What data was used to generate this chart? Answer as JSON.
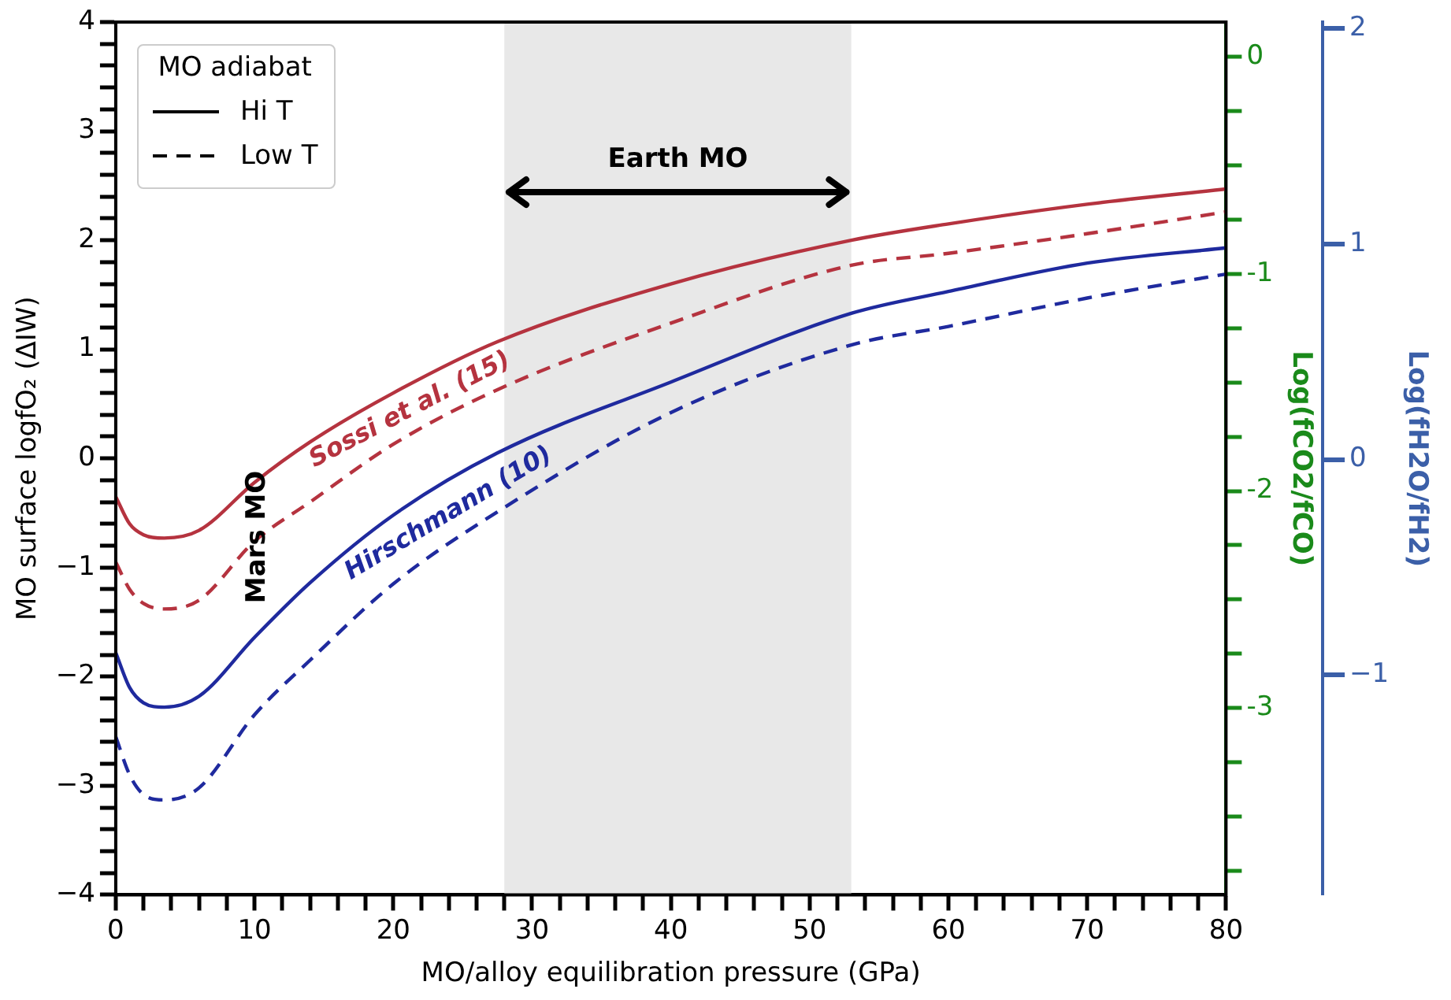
{
  "chart_data": {
    "type": "line",
    "xlabel": "MO/alloy equilibration pressure (GPa)",
    "ylabel": "MO surface logfO₂ (ΔIW)",
    "y2label": "Log(fCO2/fCO)",
    "y3label": "Log(fH2O/fH2)",
    "legend": "top left",
    "legend_title": "MO adiabat",
    "xlim": [
      0,
      80
    ],
    "xticks": [
      0,
      {
        "value": 2,
        "label": null
      },
      {
        "value": 4,
        "label": null
      },
      {
        "value": 6,
        "label": null
      },
      {
        "value": 8,
        "label": null
      },
      10,
      {
        "value": 12,
        "label": null
      },
      {
        "value": 14,
        "label": null
      },
      {
        "value": 16,
        "label": null
      },
      {
        "value": 18,
        "label": null
      },
      20,
      {
        "value": 22,
        "label": null
      },
      {
        "value": 24,
        "label": null
      },
      {
        "value": 26,
        "label": null
      },
      {
        "value": 28,
        "label": null
      },
      30,
      {
        "value": 32,
        "label": null
      },
      {
        "value": 34,
        "label": null
      },
      {
        "value": 36,
        "label": null
      },
      {
        "value": 38,
        "label": null
      },
      40,
      {
        "value": 42,
        "label": null
      },
      {
        "value": 44,
        "label": null
      },
      {
        "value": 46,
        "label": null
      },
      {
        "value": 48,
        "label": null
      },
      50,
      {
        "value": 52,
        "label": null
      },
      {
        "value": 54,
        "label": null
      },
      {
        "value": 56,
        "label": null
      },
      {
        "value": 58,
        "label": null
      },
      60,
      {
        "value": 62,
        "label": null
      },
      {
        "value": 64,
        "label": null
      },
      {
        "value": 66,
        "label": null
      },
      {
        "value": 68,
        "label": null
      },
      70,
      {
        "value": 72,
        "label": null
      },
      {
        "value": 74,
        "label": null
      },
      {
        "value": 76,
        "label": null
      },
      {
        "value": 78,
        "label": null
      },
      80
    ],
    "ylim": [
      -4,
      4
    ],
    "yticks": [
      {
        "value": -4,
        "label": "−4"
      },
      {
        "value": -3.8,
        "label": null
      },
      {
        "value": -3.6,
        "label": null
      },
      {
        "value": -3.4,
        "label": null
      },
      {
        "value": -3.2,
        "label": null
      },
      {
        "value": -3,
        "label": "−3"
      },
      {
        "value": -2.8,
        "label": null
      },
      {
        "value": -2.6,
        "label": null
      },
      {
        "value": -2.4,
        "label": null
      },
      {
        "value": -2.2,
        "label": null
      },
      {
        "value": -2,
        "label": "−2"
      },
      {
        "value": -1.8,
        "label": null
      },
      {
        "value": -1.6,
        "label": null
      },
      {
        "value": -1.4,
        "label": null
      },
      {
        "value": -1.2,
        "label": null
      },
      {
        "value": -1,
        "label": "−1"
      },
      {
        "value": -0.8,
        "label": null
      },
      {
        "value": -0.6,
        "label": null
      },
      {
        "value": -0.4,
        "label": null
      },
      {
        "value": -0.2,
        "label": null
      },
      0,
      {
        "value": 0.2,
        "label": null
      },
      {
        "value": 0.4,
        "label": null
      },
      {
        "value": 0.6,
        "label": null
      },
      {
        "value": 0.8,
        "label": null
      },
      1,
      {
        "value": 1.2,
        "label": null
      },
      {
        "value": 1.4,
        "label": null
      },
      {
        "value": 1.6,
        "label": null
      },
      {
        "value": 1.8,
        "label": null
      },
      2,
      {
        "value": 2.2,
        "label": null
      },
      {
        "value": 2.4,
        "label": null
      },
      {
        "value": 2.6,
        "label": null
      },
      {
        "value": 2.8,
        "label": null
      },
      3,
      {
        "value": 3.2,
        "label": null
      },
      {
        "value": 3.4,
        "label": null
      },
      {
        "value": 3.6,
        "label": null
      },
      {
        "value": 3.8,
        "label": null
      },
      4
    ],
    "y2lim": [
      -3.86,
      0.16
    ],
    "y2ticks": [
      {
        "value": -3.75,
        "label": null
      },
      {
        "value": -3.5,
        "label": null
      },
      {
        "value": -3.25,
        "label": null
      },
      {
        "value": -3,
        "label": "-3"
      },
      {
        "value": -2.75,
        "label": null
      },
      {
        "value": -2.5,
        "label": null
      },
      {
        "value": -2.25,
        "label": null
      },
      {
        "value": -2,
        "label": "-2"
      },
      {
        "value": -1.75,
        "label": null
      },
      {
        "value": -1.5,
        "label": null
      },
      {
        "value": -1.25,
        "label": null
      },
      {
        "value": -1,
        "label": "-1"
      },
      {
        "value": -0.75,
        "label": null
      },
      {
        "value": -0.5,
        "label": null
      },
      {
        "value": -0.25,
        "label": null
      },
      0
    ],
    "y3lim": [
      -2.02,
      2.03
    ],
    "y3ticks": [
      {
        "value": -1,
        "label": "−1"
      },
      0,
      1,
      2
    ],
    "x": [
      0,
      1,
      2,
      3.5,
      6,
      10,
      14,
      20,
      27.5,
      40,
      53,
      60,
      70,
      80
    ],
    "series": [
      {
        "name": "Sossi et al. (15)",
        "color": "#b5333f",
        "line_style": "solid",
        "values": [
          -0.35,
          -0.6,
          -0.7,
          -0.73,
          -0.66,
          -0.22,
          0.15,
          0.6,
          1.07,
          1.6,
          2.0,
          2.15,
          2.33,
          2.47
        ]
      },
      {
        "color": "#b5333f",
        "line_style": "dashed",
        "values": [
          -0.95,
          -1.2,
          -1.33,
          -1.38,
          -1.3,
          -0.76,
          -0.4,
          0.13,
          0.63,
          1.24,
          1.77,
          1.88,
          2.06,
          2.26
        ]
      },
      {
        "name": "Hirschmann (10)",
        "color": "#1f2a9e",
        "line_style": "solid",
        "values": [
          -1.78,
          -2.1,
          -2.24,
          -2.28,
          -2.18,
          -1.64,
          -1.14,
          -0.52,
          0.05,
          0.7,
          1.33,
          1.53,
          1.79,
          1.93
        ]
      },
      {
        "color": "#1f2a9e",
        "line_style": "dashed",
        "values": [
          -2.55,
          -2.9,
          -3.08,
          -3.13,
          -3.02,
          -2.35,
          -1.85,
          -1.15,
          -0.49,
          0.42,
          1.04,
          1.21,
          1.47,
          1.69
        ]
      }
    ],
    "bands": [
      {
        "axis": "x",
        "from": 28,
        "to": 53,
        "label": "Earth MO",
        "color": "#e8e8e8"
      }
    ],
    "annotations": [
      "Hi T",
      "Low T",
      "Mars MO"
    ]
  }
}
